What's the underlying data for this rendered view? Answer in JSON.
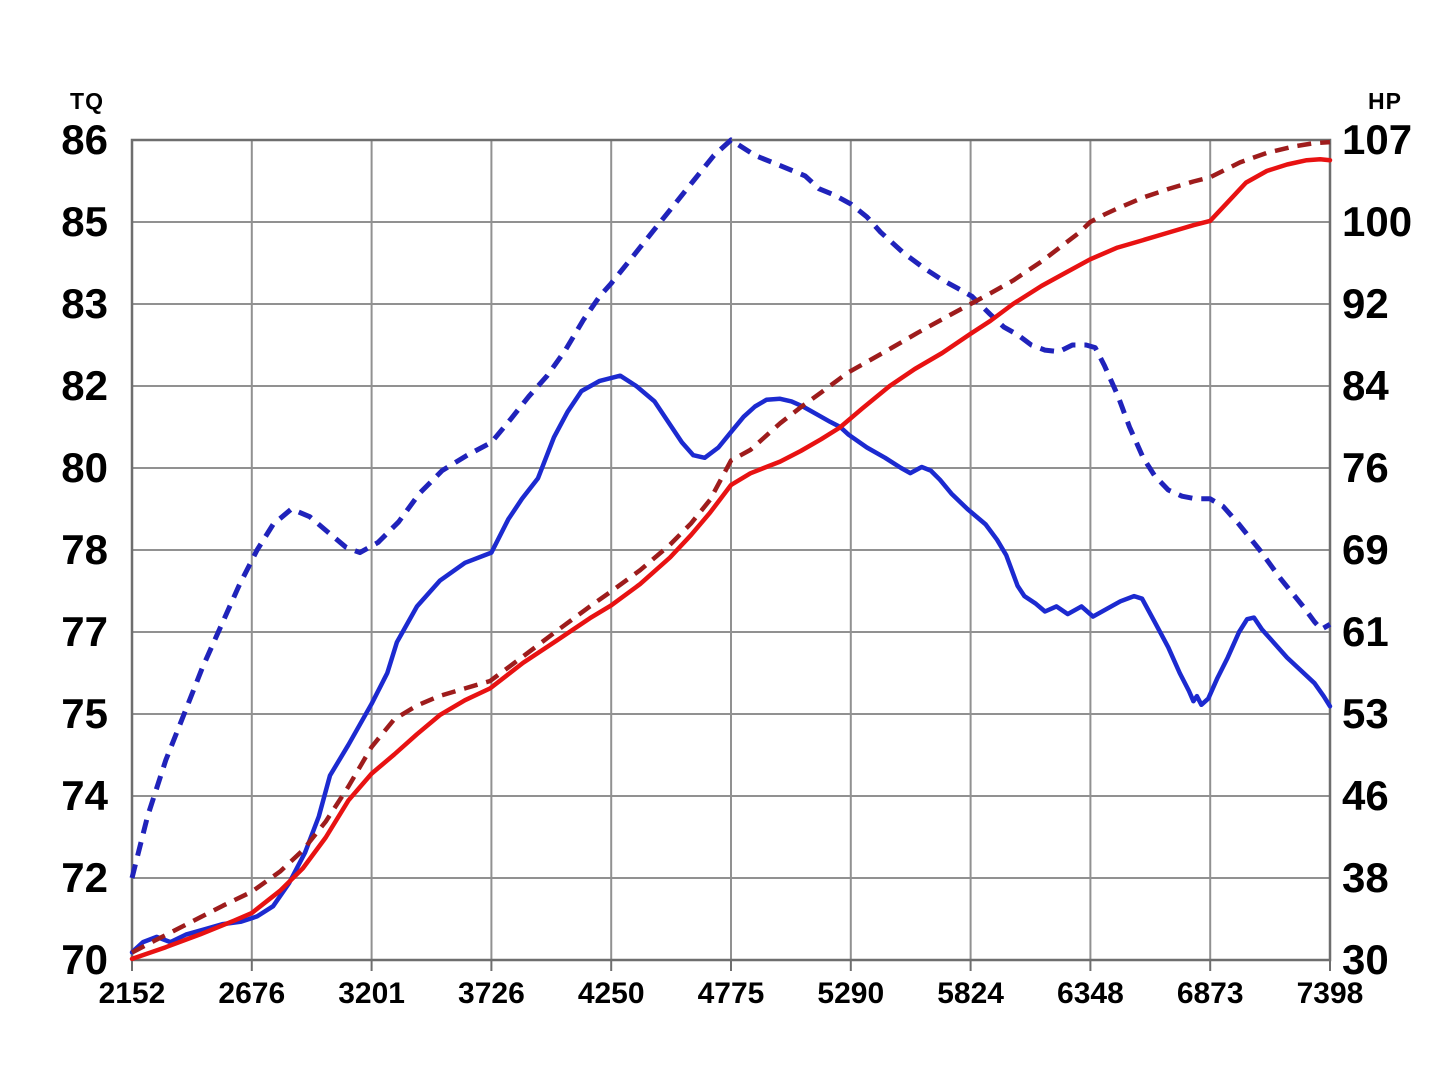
{
  "chart_data": {
    "type": "line",
    "title": "",
    "grid": true,
    "colors": {
      "grid": "#919191",
      "border": "#6e6e6e",
      "tick": "#6e6e6e",
      "label": "#000000",
      "background": "#ffffff",
      "torque_dashed": "#2023bb",
      "torque_solid": "#1c2ad0",
      "hp_dashed": "#9e1c1c",
      "hp_solid": "#e81212"
    },
    "x_axis": {
      "range": [
        2152,
        7398
      ],
      "tick_labels": [
        "2152",
        "2676",
        "3201",
        "3726",
        "4250",
        "4775",
        "5290",
        "5824",
        "6348",
        "6873",
        "7398"
      ]
    },
    "y_left": {
      "title": "TQ",
      "range": [
        70,
        86
      ],
      "tick_labels": [
        "86",
        "85",
        "83",
        "82",
        "80",
        "78",
        "77",
        "75",
        "74",
        "72",
        "70"
      ]
    },
    "y_right": {
      "title": "HP",
      "range": [
        30,
        107
      ],
      "tick_labels": [
        "107",
        "100",
        "92",
        "84",
        "76",
        "69",
        "61",
        "53",
        "46",
        "38",
        "30"
      ]
    },
    "series": [
      {
        "name": "torque-run-dashed",
        "axis": "left",
        "style": "dashed",
        "color_key": "torque_dashed",
        "width": 5,
        "points": [
          [
            2152,
            71.6
          ],
          [
            2220,
            72.8
          ],
          [
            2300,
            73.9
          ],
          [
            2380,
            74.8
          ],
          [
            2460,
            75.7
          ],
          [
            2540,
            76.5
          ],
          [
            2620,
            77.3
          ],
          [
            2700,
            78.0
          ],
          [
            2770,
            78.5
          ],
          [
            2850,
            78.8
          ],
          [
            2930,
            78.65
          ],
          [
            3010,
            78.35
          ],
          [
            3090,
            78.05
          ],
          [
            3150,
            77.95
          ],
          [
            3230,
            78.15
          ],
          [
            3320,
            78.55
          ],
          [
            3410,
            79.1
          ],
          [
            3510,
            79.55
          ],
          [
            3620,
            79.85
          ],
          [
            3726,
            80.1
          ],
          [
            3810,
            80.55
          ],
          [
            3890,
            81.0
          ],
          [
            3970,
            81.4
          ],
          [
            4050,
            81.9
          ],
          [
            4130,
            82.5
          ],
          [
            4200,
            82.95
          ],
          [
            4250,
            83.2
          ],
          [
            4340,
            83.7
          ],
          [
            4430,
            84.2
          ],
          [
            4520,
            84.7
          ],
          [
            4610,
            85.2
          ],
          [
            4700,
            85.7
          ],
          [
            4775,
            86.0
          ],
          [
            4880,
            85.7
          ],
          [
            4990,
            85.5
          ],
          [
            5100,
            85.3
          ],
          [
            5160,
            85.05
          ],
          [
            5230,
            84.92
          ],
          [
            5300,
            84.75
          ],
          [
            5370,
            84.5
          ],
          [
            5430,
            84.2
          ],
          [
            5530,
            83.8
          ],
          [
            5620,
            83.5
          ],
          [
            5700,
            83.27
          ],
          [
            5770,
            83.1
          ],
          [
            5830,
            82.95
          ],
          [
            5910,
            82.6
          ],
          [
            5970,
            82.35
          ],
          [
            6030,
            82.2
          ],
          [
            6090,
            82.0
          ],
          [
            6150,
            81.9
          ],
          [
            6210,
            81.87
          ],
          [
            6270,
            82.0
          ],
          [
            6330,
            82.0
          ],
          [
            6370,
            81.95
          ],
          [
            6410,
            81.6
          ],
          [
            6470,
            81.0
          ],
          [
            6520,
            80.4
          ],
          [
            6580,
            79.8
          ],
          [
            6630,
            79.45
          ],
          [
            6690,
            79.17
          ],
          [
            6750,
            79.05
          ],
          [
            6810,
            79.0
          ],
          [
            6873,
            79.0
          ],
          [
            6930,
            78.85
          ],
          [
            7000,
            78.5
          ],
          [
            7090,
            78.0
          ],
          [
            7180,
            77.45
          ],
          [
            7280,
            76.9
          ],
          [
            7330,
            76.6
          ],
          [
            7360,
            76.45
          ],
          [
            7398,
            76.55
          ]
        ]
      },
      {
        "name": "torque-run-solid",
        "axis": "left",
        "style": "solid",
        "color_key": "torque_solid",
        "width": 4.5,
        "points": [
          [
            2152,
            70.15
          ],
          [
            2200,
            70.35
          ],
          [
            2260,
            70.45
          ],
          [
            2320,
            70.35
          ],
          [
            2390,
            70.5
          ],
          [
            2470,
            70.6
          ],
          [
            2550,
            70.7
          ],
          [
            2630,
            70.75
          ],
          [
            2700,
            70.85
          ],
          [
            2770,
            71.05
          ],
          [
            2840,
            71.5
          ],
          [
            2910,
            72.1
          ],
          [
            2970,
            72.8
          ],
          [
            3019,
            73.6
          ],
          [
            3100,
            74.2
          ],
          [
            3201,
            75.0
          ],
          [
            3270,
            75.6
          ],
          [
            3312,
            76.2
          ],
          [
            3400,
            76.9
          ],
          [
            3500,
            77.4
          ],
          [
            3610,
            77.75
          ],
          [
            3726,
            77.95
          ],
          [
            3800,
            78.6
          ],
          [
            3860,
            79.0
          ],
          [
            3930,
            79.4
          ],
          [
            4000,
            80.2
          ],
          [
            4060,
            80.7
          ],
          [
            4120,
            81.1
          ],
          [
            4200,
            81.3
          ],
          [
            4290,
            81.4
          ],
          [
            4360,
            81.2
          ],
          [
            4440,
            80.9
          ],
          [
            4500,
            80.5
          ],
          [
            4560,
            80.1
          ],
          [
            4610,
            79.85
          ],
          [
            4660,
            79.8
          ],
          [
            4720,
            80.0
          ],
          [
            4775,
            80.3
          ],
          [
            4830,
            80.6
          ],
          [
            4880,
            80.8
          ],
          [
            4930,
            80.93
          ],
          [
            4990,
            80.95
          ],
          [
            5040,
            80.9
          ],
          [
            5090,
            80.8
          ],
          [
            5150,
            80.65
          ],
          [
            5210,
            80.5
          ],
          [
            5253,
            80.4
          ],
          [
            5290,
            80.25
          ],
          [
            5370,
            80.0
          ],
          [
            5450,
            79.8
          ],
          [
            5520,
            79.6
          ],
          [
            5560,
            79.5
          ],
          [
            5610,
            79.62
          ],
          [
            5650,
            79.55
          ],
          [
            5690,
            79.37
          ],
          [
            5740,
            79.1
          ],
          [
            5810,
            78.8
          ],
          [
            5890,
            78.5
          ],
          [
            5940,
            78.2
          ],
          [
            5980,
            77.9
          ],
          [
            6030,
            77.3
          ],
          [
            6060,
            77.1
          ],
          [
            6110,
            76.95
          ],
          [
            6150,
            76.8
          ],
          [
            6200,
            76.9
          ],
          [
            6250,
            76.75
          ],
          [
            6310,
            76.9
          ],
          [
            6360,
            76.7
          ],
          [
            6420,
            76.85
          ],
          [
            6480,
            77.0
          ],
          [
            6540,
            77.1
          ],
          [
            6575,
            77.05
          ],
          [
            6630,
            76.6
          ],
          [
            6690,
            76.1
          ],
          [
            6740,
            75.6
          ],
          [
            6780,
            75.25
          ],
          [
            6800,
            75.05
          ],
          [
            6815,
            75.15
          ],
          [
            6835,
            74.98
          ],
          [
            6865,
            75.1
          ],
          [
            6905,
            75.5
          ],
          [
            6950,
            75.9
          ],
          [
            7000,
            76.4
          ],
          [
            7035,
            76.65
          ],
          [
            7065,
            76.68
          ],
          [
            7100,
            76.45
          ],
          [
            7150,
            76.2
          ],
          [
            7210,
            75.9
          ],
          [
            7270,
            75.65
          ],
          [
            7330,
            75.4
          ],
          [
            7370,
            75.15
          ],
          [
            7398,
            74.95
          ]
        ]
      },
      {
        "name": "hp-run-dashed",
        "axis": "right",
        "style": "dashed",
        "color_key": "hp_dashed",
        "width": 4.5,
        "points": [
          [
            2152,
            30.7
          ],
          [
            2250,
            31.8
          ],
          [
            2350,
            32.9
          ],
          [
            2450,
            34.0
          ],
          [
            2550,
            35.1
          ],
          [
            2676,
            36.4
          ],
          [
            2800,
            38.3
          ],
          [
            2900,
            40.3
          ],
          [
            3000,
            43.0
          ],
          [
            3100,
            46.3
          ],
          [
            3201,
            50.0
          ],
          [
            3300,
            52.6
          ],
          [
            3400,
            53.9
          ],
          [
            3500,
            54.8
          ],
          [
            3610,
            55.5
          ],
          [
            3720,
            56.2
          ],
          [
            3864,
            58.5
          ],
          [
            4012,
            60.9
          ],
          [
            4157,
            63.2
          ],
          [
            4250,
            64.6
          ],
          [
            4377,
            66.6
          ],
          [
            4508,
            69.0
          ],
          [
            4600,
            71.0
          ],
          [
            4683,
            73.2
          ],
          [
            4775,
            76.9
          ],
          [
            4860,
            77.9
          ],
          [
            4990,
            80.4
          ],
          [
            5080,
            81.9
          ],
          [
            5170,
            83.3
          ],
          [
            5252,
            84.6
          ],
          [
            5290,
            85.2
          ],
          [
            5448,
            87.1
          ],
          [
            5592,
            88.9
          ],
          [
            5737,
            90.6
          ],
          [
            5824,
            91.6
          ],
          [
            5910,
            92.6
          ],
          [
            6010,
            93.8
          ],
          [
            6135,
            95.6
          ],
          [
            6245,
            97.4
          ],
          [
            6300,
            98.3
          ],
          [
            6348,
            99.3
          ],
          [
            6410,
            100.0
          ],
          [
            6460,
            100.5
          ],
          [
            6580,
            101.6
          ],
          [
            6690,
            102.4
          ],
          [
            6800,
            103.1
          ],
          [
            6873,
            103.5
          ],
          [
            7004,
            104.9
          ],
          [
            7122,
            105.8
          ],
          [
            7240,
            106.4
          ],
          [
            7327,
            106.7
          ],
          [
            7398,
            106.8
          ]
        ]
      },
      {
        "name": "hp-run-solid",
        "axis": "right",
        "style": "solid",
        "color_key": "hp_solid",
        "width": 4.5,
        "points": [
          [
            2152,
            30.1
          ],
          [
            2300,
            31.2
          ],
          [
            2450,
            32.4
          ],
          [
            2600,
            33.7
          ],
          [
            2676,
            34.4
          ],
          [
            2800,
            36.5
          ],
          [
            2900,
            38.6
          ],
          [
            3000,
            41.5
          ],
          [
            3100,
            45.0
          ],
          [
            3201,
            47.5
          ],
          [
            3300,
            49.3
          ],
          [
            3400,
            51.2
          ],
          [
            3500,
            53.0
          ],
          [
            3610,
            54.4
          ],
          [
            3720,
            55.5
          ],
          [
            3864,
            57.9
          ],
          [
            4012,
            60.0
          ],
          [
            4157,
            62.1
          ],
          [
            4250,
            63.3
          ],
          [
            4377,
            65.3
          ],
          [
            4508,
            67.8
          ],
          [
            4600,
            69.9
          ],
          [
            4683,
            72.0
          ],
          [
            4775,
            74.6
          ],
          [
            4860,
            75.7
          ],
          [
            4990,
            76.8
          ],
          [
            5080,
            77.8
          ],
          [
            5170,
            78.9
          ],
          [
            5252,
            80.0
          ],
          [
            5350,
            81.8
          ],
          [
            5470,
            83.9
          ],
          [
            5580,
            85.5
          ],
          [
            5700,
            87.0
          ],
          [
            5824,
            88.8
          ],
          [
            5910,
            90.0
          ],
          [
            6010,
            91.6
          ],
          [
            6135,
            93.3
          ],
          [
            6245,
            94.6
          ],
          [
            6348,
            95.8
          ],
          [
            6467,
            96.9
          ],
          [
            6580,
            97.6
          ],
          [
            6690,
            98.3
          ],
          [
            6800,
            99.0
          ],
          [
            6873,
            99.4
          ],
          [
            6943,
            101.0
          ],
          [
            7030,
            103.0
          ],
          [
            7122,
            104.1
          ],
          [
            7210,
            104.7
          ],
          [
            7296,
            105.1
          ],
          [
            7355,
            105.2
          ],
          [
            7398,
            105.1
          ]
        ]
      }
    ]
  }
}
